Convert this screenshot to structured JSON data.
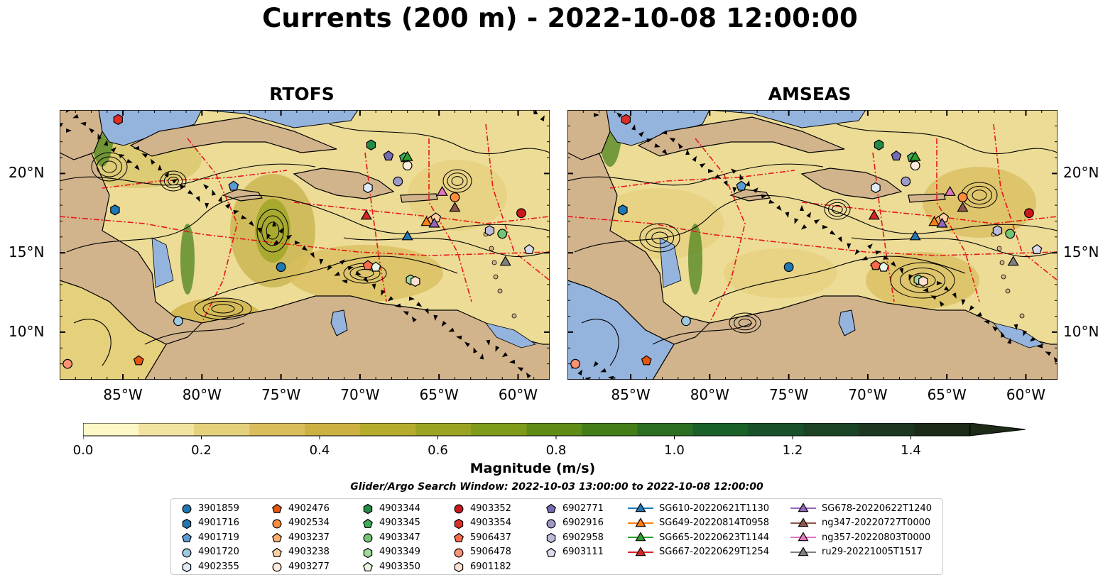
{
  "title": "Currents (200 m) - 2022-10-08 12:00:00",
  "panels": [
    {
      "title": "RTOFS"
    },
    {
      "title": "AMSEAS"
    }
  ],
  "axes": {
    "x_ticks": [
      "85°W",
      "80°W",
      "75°W",
      "70°W",
      "65°W",
      "60°W"
    ],
    "y_ticks_left": [
      "20°N",
      "15°N",
      "10°N"
    ],
    "y_ticks_right": [
      "20°N",
      "15°N",
      "10°N"
    ],
    "lon_range": [
      -89,
      -58
    ],
    "lat_range": [
      7,
      24
    ]
  },
  "colorbar": {
    "label": "Magnitude (m/s)",
    "ticks": [
      "0.0",
      "0.2",
      "0.4",
      "0.6",
      "0.8",
      "1.0",
      "1.2",
      "1.4"
    ],
    "range": [
      0,
      1.5
    ],
    "extend": "max",
    "colors": [
      "#fef8c6",
      "#f1e3a0",
      "#e5d07c",
      "#d9bd5c",
      "#cdb042",
      "#b5ac2e",
      "#9aa422",
      "#7d9a18",
      "#5f8c15",
      "#437d18",
      "#2b6e21",
      "#1a6029",
      "#17502a",
      "#1a4326",
      "#1c3620",
      "#1c2a17"
    ]
  },
  "search_window": "Glider/Argo Search Window: 2022-10-03 13:00:00 to 2022-10-08 12:00:00",
  "legend": [
    {
      "label": "3901859",
      "marker": "circle",
      "color": "#1f77b4"
    },
    {
      "label": "4901716",
      "marker": "hexagon",
      "color": "#1f77b4"
    },
    {
      "label": "4901719",
      "marker": "pentagon",
      "color": "#5b9bd5"
    },
    {
      "label": "4901720",
      "marker": "circle",
      "color": "#9ecae1"
    },
    {
      "label": "4902355",
      "marker": "hexagon",
      "color": "#deebf7"
    },
    {
      "label": "4902476",
      "marker": "pentagon",
      "color": "#e6550d"
    },
    {
      "label": "4902534",
      "marker": "circle",
      "color": "#fd8d3c"
    },
    {
      "label": "4903237",
      "marker": "pentagon",
      "color": "#fdae6b"
    },
    {
      "label": "4903238",
      "marker": "pentagon",
      "color": "#fdd0a2"
    },
    {
      "label": "4903277",
      "marker": "circle",
      "color": "#feedde"
    },
    {
      "label": "4903344",
      "marker": "hexagon",
      "color": "#238b45"
    },
    {
      "label": "4903345",
      "marker": "pentagon",
      "color": "#41ab5d"
    },
    {
      "label": "4903347",
      "marker": "circle",
      "color": "#74c476"
    },
    {
      "label": "4903349",
      "marker": "hexagon",
      "color": "#a1d99b"
    },
    {
      "label": "4903350",
      "marker": "pentagon",
      "color": "#e5f5e0"
    },
    {
      "label": "4903352",
      "marker": "circle",
      "color": "#cb181d"
    },
    {
      "label": "4903354",
      "marker": "hexagon",
      "color": "#de2d26"
    },
    {
      "label": "5906437",
      "marker": "pentagon",
      "color": "#fb6a4a"
    },
    {
      "label": "5906478",
      "marker": "circle",
      "color": "#fc9272"
    },
    {
      "label": "6901182",
      "marker": "hexagon",
      "color": "#fee0d2"
    },
    {
      "label": "6902771",
      "marker": "pentagon",
      "color": "#756bb1"
    },
    {
      "label": "6902916",
      "marker": "circle",
      "color": "#9e9ac8"
    },
    {
      "label": "6902958",
      "marker": "hexagon",
      "color": "#bcbddc"
    },
    {
      "label": "6903111",
      "marker": "pentagon",
      "color": "#dadaeb"
    },
    {
      "label": "SG610-20220621T1130",
      "marker": "triangle",
      "color": "#1f77b4"
    },
    {
      "label": "SG649-20220814T0958",
      "marker": "triangle",
      "color": "#ff7f0e"
    },
    {
      "label": "SG665-20220623T1144",
      "marker": "triangle",
      "color": "#2ca02c"
    },
    {
      "label": "SG667-20220629T1254",
      "marker": "triangle",
      "color": "#d62728"
    },
    {
      "label": "SG678-20220622T1240",
      "marker": "triangle",
      "color": "#9467bd"
    },
    {
      "label": "ng347-20220727T0000",
      "marker": "triangle",
      "color": "#8c564b"
    },
    {
      "label": "ng357-20220803T0000",
      "marker": "triangle",
      "color": "#e377c2"
    },
    {
      "label": "ru29-20221005T1517",
      "marker": "triangle",
      "color": "#7f7f7f"
    }
  ],
  "chart_data": {
    "type": "scatter",
    "series": [
      {
        "name": "3901859",
        "points": [
          [
            -75.0,
            14.1
          ]
        ]
      },
      {
        "name": "4901716",
        "points": [
          [
            -85.5,
            17.7
          ]
        ]
      },
      {
        "name": "4901719",
        "points": [
          [
            -78.0,
            19.2
          ]
        ]
      },
      {
        "name": "4901720",
        "points": [
          [
            -81.5,
            10.7
          ]
        ]
      },
      {
        "name": "4902355",
        "points": [
          [
            -69.5,
            19.1
          ]
        ]
      },
      {
        "name": "4902476",
        "points": [
          [
            -84.0,
            8.2
          ]
        ]
      },
      {
        "name": "4902534",
        "points": [
          [
            -64.0,
            18.5
          ]
        ]
      },
      {
        "name": "4903237",
        "points": [
          [
            -65.5,
            17.0
          ]
        ]
      },
      {
        "name": "4903238",
        "points": [
          [
            -65.2,
            17.2
          ]
        ]
      },
      {
        "name": "4903277",
        "points": [
          [
            -67.0,
            20.5
          ]
        ]
      },
      {
        "name": "4903344",
        "points": [
          [
            -69.3,
            21.8
          ]
        ]
      },
      {
        "name": "4903345",
        "points": [
          [
            -67.2,
            21.0
          ]
        ]
      },
      {
        "name": "4903347",
        "points": [
          [
            -61.0,
            16.2
          ]
        ]
      },
      {
        "name": "4903349",
        "points": [
          [
            -66.8,
            13.3
          ]
        ]
      },
      {
        "name": "4903350",
        "points": [
          [
            -69.0,
            14.1
          ]
        ]
      },
      {
        "name": "4903352",
        "points": [
          [
            -59.8,
            17.5
          ]
        ]
      },
      {
        "name": "4903354",
        "points": [
          [
            -85.3,
            23.4
          ]
        ]
      },
      {
        "name": "5906437",
        "points": [
          [
            -69.5,
            14.2
          ]
        ]
      },
      {
        "name": "5906478",
        "points": [
          [
            -88.5,
            8.0
          ]
        ]
      },
      {
        "name": "6901182",
        "points": [
          [
            -66.5,
            13.2
          ]
        ]
      },
      {
        "name": "6902771",
        "points": [
          [
            -68.2,
            21.1
          ]
        ]
      },
      {
        "name": "6902916",
        "points": [
          [
            -67.6,
            19.5
          ]
        ]
      },
      {
        "name": "6902958",
        "points": [
          [
            -61.8,
            16.4
          ]
        ]
      },
      {
        "name": "6903111",
        "points": [
          [
            -59.3,
            15.2
          ]
        ]
      },
      {
        "name": "SG610-20220621T1130",
        "points": [
          [
            -67.0,
            16.0
          ]
        ]
      },
      {
        "name": "SG649-20220814T0958",
        "points": [
          [
            -65.8,
            16.9
          ]
        ]
      },
      {
        "name": "SG665-20220623T1144",
        "points": [
          [
            -67.0,
            21.0
          ]
        ]
      },
      {
        "name": "SG667-20220629T1254",
        "points": [
          [
            -69.6,
            17.3
          ]
        ]
      },
      {
        "name": "SG678-20220622T1240",
        "points": [
          [
            -65.3,
            16.8
          ]
        ]
      },
      {
        "name": "ng347-20220727T0000",
        "points": [
          [
            -64.0,
            17.8
          ]
        ]
      },
      {
        "name": "ng357-20220803T0000",
        "points": [
          [
            -64.8,
            18.8
          ]
        ]
      },
      {
        "name": "ru29-20221005T1517",
        "points": [
          [
            -60.8,
            14.4
          ]
        ]
      }
    ],
    "xlim": [
      -89,
      -58
    ],
    "ylim": [
      7,
      24
    ]
  }
}
